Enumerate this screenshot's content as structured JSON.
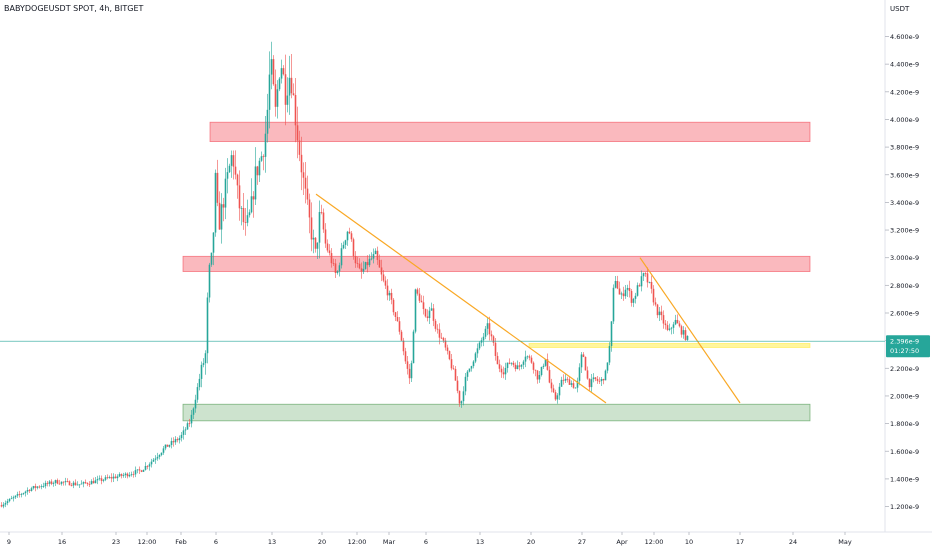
{
  "header": {
    "title": "BABYDOGEUSDT SPOT, 4h, BITGET",
    "currency": "USDT"
  },
  "price_label": {
    "value": "2.396e-9",
    "countdown": "01:27:50"
  },
  "chart_data": {
    "type": "candlestick",
    "symbol": "BABYDOGEUSDT SPOT",
    "interval": "4h",
    "exchange": "BITGET",
    "y_unit": "USDT",
    "ylim": [
      1.16e-09,
      4.82e-09
    ],
    "y_ticks": [
      "1.200e-9",
      "1.400e-9",
      "1.600e-9",
      "1.800e-9",
      "2.000e-9",
      "2.200e-9",
      "2.400e-9",
      "2.600e-9",
      "2.800e-9",
      "3.000e-9",
      "3.200e-9",
      "3.400e-9",
      "3.600e-9",
      "3.800e-9",
      "4.000e-9",
      "4.200e-9",
      "4.400e-9",
      "4.600e-9"
    ],
    "x_ticks": [
      "9",
      "16",
      "23",
      "12:00",
      "Feb",
      "6",
      "13",
      "20",
      "12:00",
      "Mar",
      "6",
      "13",
      "20",
      "27",
      "Apr",
      "12:00",
      "10",
      "17",
      "24",
      "May"
    ],
    "last_price": 2.396e-09,
    "colors": {
      "up": "#26a69a",
      "down": "#ef5350"
    },
    "price_path": [
      [
        0,
        1.21e-09
      ],
      [
        30,
        1.33e-09
      ],
      [
        55,
        1.38e-09
      ],
      [
        80,
        1.36e-09
      ],
      [
        105,
        1.4e-09
      ],
      [
        125,
        1.43e-09
      ],
      [
        140,
        1.46e-09
      ],
      [
        150,
        1.52e-09
      ],
      [
        165,
        1.63e-09
      ],
      [
        180,
        1.7e-09
      ],
      [
        190,
        1.82e-09
      ],
      [
        200,
        2.16e-09
      ],
      [
        205,
        2.3e-09
      ],
      [
        208,
        2.86e-09
      ],
      [
        212,
        3.02e-09
      ],
      [
        215,
        3.55e-09
      ],
      [
        218,
        3.22e-09
      ],
      [
        225,
        3.5e-09
      ],
      [
        232,
        3.76e-09
      ],
      [
        238,
        3.4e-09
      ],
      [
        245,
        3.2e-09
      ],
      [
        250,
        3.32e-09
      ],
      [
        255,
        3.6e-09
      ],
      [
        262,
        3.76e-09
      ],
      [
        266,
        3.95e-09
      ],
      [
        270,
        4.42e-09
      ],
      [
        275,
        4.05e-09
      ],
      [
        280,
        4.45e-09
      ],
      [
        285,
        4.2e-09
      ],
      [
        290,
        4.35e-09
      ],
      [
        296,
        3.95e-09
      ],
      [
        302,
        3.6e-09
      ],
      [
        308,
        3.3e-09
      ],
      [
        315,
        3.02e-09
      ],
      [
        320,
        3.35e-09
      ],
      [
        325,
        3.1e-09
      ],
      [
        330,
        3e-09
      ],
      [
        336,
        2.86e-09
      ],
      [
        342,
        3.08e-09
      ],
      [
        348,
        3.22e-09
      ],
      [
        354,
        3e-09
      ],
      [
        360,
        2.88e-09
      ],
      [
        368,
        2.97e-09
      ],
      [
        375,
        3.02e-09
      ],
      [
        382,
        2.84e-09
      ],
      [
        388,
        2.74e-09
      ],
      [
        394,
        2.6e-09
      ],
      [
        400,
        2.45e-09
      ],
      [
        405,
        2.25e-09
      ],
      [
        410,
        2.1e-09
      ],
      [
        415,
        2.75e-09
      ],
      [
        420,
        2.7e-09
      ],
      [
        425,
        2.55e-09
      ],
      [
        430,
        2.65e-09
      ],
      [
        436,
        2.48e-09
      ],
      [
        442,
        2.4e-09
      ],
      [
        448,
        2.28e-09
      ],
      [
        454,
        2.15e-09
      ],
      [
        460,
        1.92e-09
      ],
      [
        464,
        2.1e-09
      ],
      [
        470,
        2.22e-09
      ],
      [
        475,
        2.3e-09
      ],
      [
        481,
        2.4e-09
      ],
      [
        487,
        2.5e-09
      ],
      [
        492,
        2.4e-09
      ],
      [
        497,
        2.22e-09
      ],
      [
        503,
        2.18e-09
      ],
      [
        510,
        2.25e-09
      ],
      [
        518,
        2.2e-09
      ],
      [
        525,
        2.3e-09
      ],
      [
        531,
        2.25e-09
      ],
      [
        538,
        2.12e-09
      ],
      [
        545,
        2.28e-09
      ],
      [
        550,
        2.05e-09
      ],
      [
        555,
        1.98e-09
      ],
      [
        562,
        2.12e-09
      ],
      [
        570,
        2.1e-09
      ],
      [
        576,
        2.05e-09
      ],
      [
        582,
        2.33e-09
      ],
      [
        588,
        2.08e-09
      ],
      [
        594,
        2.12e-09
      ],
      [
        600,
        2.1e-09
      ],
      [
        605,
        2.16e-09
      ],
      [
        610,
        2.4e-09
      ],
      [
        614,
        2.88e-09
      ],
      [
        620,
        2.7e-09
      ],
      [
        626,
        2.8e-09
      ],
      [
        632,
        2.68e-09
      ],
      [
        638,
        2.8e-09
      ],
      [
        644,
        2.88e-09
      ],
      [
        650,
        2.78e-09
      ],
      [
        656,
        2.62e-09
      ],
      [
        662,
        2.55e-09
      ],
      [
        668,
        2.45e-09
      ],
      [
        674,
        2.55e-09
      ],
      [
        680,
        2.48e-09
      ],
      [
        688,
        2.4e-09
      ]
    ],
    "zones": [
      {
        "color": "#f23645",
        "opacity": 0.35,
        "x0": 210,
        "x1": 810,
        "y_from": 3.84e-09,
        "y_to": 3.98e-09
      },
      {
        "color": "#f23645",
        "opacity": 0.35,
        "x0": 183,
        "x1": 810,
        "y_from": 2.9e-09,
        "y_to": 3.01e-09
      },
      {
        "color": "#ffeb3b",
        "opacity": 0.5,
        "x0": 529,
        "x1": 810,
        "y_from": 2.35e-09,
        "y_to": 2.38e-09
      },
      {
        "color": "#388e3c",
        "opacity": 0.25,
        "x0": 183,
        "x1": 810,
        "y_from": 1.82e-09,
        "y_to": 1.94e-09
      }
    ],
    "trend_lines": [
      {
        "color": "#f9a825",
        "x0": 316,
        "y0": 3.46e-09,
        "x1": 606,
        "y1": 1.95e-09
      },
      {
        "color": "#f9a825",
        "x0": 640,
        "y0": 3e-09,
        "x1": 740,
        "y1": 1.95e-09
      }
    ]
  }
}
